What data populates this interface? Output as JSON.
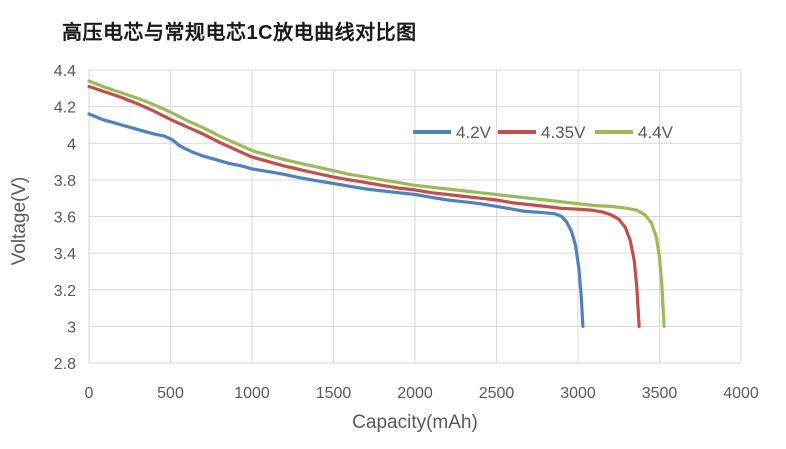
{
  "title": "高压电芯与常规电芯1C放电曲线对比图",
  "chart_data": {
    "type": "line",
    "title": "高压电芯与常规电芯1C放电曲线对比图",
    "xlabel": "Capacity(mAh)",
    "ylabel": "Voltage(V)",
    "xlim": [
      0,
      4000
    ],
    "ylim": [
      2.8,
      4.4
    ],
    "grid": true,
    "legend_position": "top-right-inside",
    "grid_color": "#d9d9d9",
    "tick_color": "#595959",
    "background": "#ffffff",
    "x_ticks": [
      0,
      500,
      1000,
      1500,
      2000,
      2500,
      3000,
      3500,
      4000
    ],
    "x_tick_labels": [
      "0",
      "500",
      "1000",
      "1500",
      "2000",
      "2500",
      "3000",
      "3500",
      "4000"
    ],
    "y_ticks": [
      4.4,
      4.2,
      4.0,
      3.8,
      3.6,
      3.4,
      3.2,
      3.0,
      2.8
    ],
    "y_tick_labels": [
      "4.4",
      "4.2",
      "4",
      "3.8",
      "3.6",
      "3.4",
      "3.2",
      "3",
      "2.8"
    ],
    "series": [
      {
        "name": "4.2V",
        "color": "#4F81BD",
        "points": [
          [
            0,
            4.16
          ],
          [
            80,
            4.13
          ],
          [
            160,
            4.11
          ],
          [
            240,
            4.09
          ],
          [
            320,
            4.07
          ],
          [
            400,
            4.05
          ],
          [
            460,
            4.04
          ],
          [
            510,
            4.02
          ],
          [
            550,
            3.99
          ],
          [
            590,
            3.97
          ],
          [
            640,
            3.95
          ],
          [
            700,
            3.93
          ],
          [
            780,
            3.91
          ],
          [
            860,
            3.89
          ],
          [
            940,
            3.875
          ],
          [
            1000,
            3.86
          ],
          [
            1100,
            3.845
          ],
          [
            1200,
            3.83
          ],
          [
            1300,
            3.81
          ],
          [
            1400,
            3.795
          ],
          [
            1500,
            3.78
          ],
          [
            1600,
            3.765
          ],
          [
            1700,
            3.75
          ],
          [
            1800,
            3.74
          ],
          [
            1900,
            3.73
          ],
          [
            2000,
            3.72
          ],
          [
            2100,
            3.705
          ],
          [
            2200,
            3.69
          ],
          [
            2300,
            3.68
          ],
          [
            2400,
            3.67
          ],
          [
            2500,
            3.655
          ],
          [
            2600,
            3.64
          ],
          [
            2660,
            3.63
          ],
          [
            2720,
            3.625
          ],
          [
            2800,
            3.62
          ],
          [
            2860,
            3.615
          ],
          [
            2900,
            3.6
          ],
          [
            2930,
            3.57
          ],
          [
            2960,
            3.52
          ],
          [
            2985,
            3.44
          ],
          [
            3005,
            3.32
          ],
          [
            3020,
            3.16
          ],
          [
            3030,
            3.0
          ]
        ]
      },
      {
        "name": "4.35V",
        "color": "#C0504D",
        "points": [
          [
            0,
            4.31
          ],
          [
            100,
            4.28
          ],
          [
            200,
            4.25
          ],
          [
            300,
            4.215
          ],
          [
            400,
            4.175
          ],
          [
            500,
            4.13
          ],
          [
            600,
            4.09
          ],
          [
            700,
            4.05
          ],
          [
            800,
            4.005
          ],
          [
            900,
            3.965
          ],
          [
            1000,
            3.925
          ],
          [
            1100,
            3.9
          ],
          [
            1200,
            3.875
          ],
          [
            1300,
            3.855
          ],
          [
            1400,
            3.835
          ],
          [
            1500,
            3.815
          ],
          [
            1600,
            3.8
          ],
          [
            1700,
            3.785
          ],
          [
            1800,
            3.77
          ],
          [
            1900,
            3.755
          ],
          [
            2000,
            3.745
          ],
          [
            2100,
            3.73
          ],
          [
            2200,
            3.72
          ],
          [
            2300,
            3.71
          ],
          [
            2400,
            3.7
          ],
          [
            2500,
            3.69
          ],
          [
            2600,
            3.675
          ],
          [
            2700,
            3.665
          ],
          [
            2800,
            3.655
          ],
          [
            2900,
            3.645
          ],
          [
            3000,
            3.64
          ],
          [
            3080,
            3.635
          ],
          [
            3150,
            3.625
          ],
          [
            3200,
            3.61
          ],
          [
            3250,
            3.585
          ],
          [
            3290,
            3.54
          ],
          [
            3320,
            3.47
          ],
          [
            3345,
            3.36
          ],
          [
            3360,
            3.22
          ],
          [
            3372,
            3.05
          ],
          [
            3375,
            3.0
          ]
        ]
      },
      {
        "name": "4.4V",
        "color": "#9BBB59",
        "points": [
          [
            0,
            4.34
          ],
          [
            100,
            4.305
          ],
          [
            200,
            4.275
          ],
          [
            300,
            4.245
          ],
          [
            400,
            4.21
          ],
          [
            500,
            4.17
          ],
          [
            600,
            4.125
          ],
          [
            700,
            4.085
          ],
          [
            800,
            4.04
          ],
          [
            900,
            4.0
          ],
          [
            1000,
            3.96
          ],
          [
            1100,
            3.935
          ],
          [
            1200,
            3.91
          ],
          [
            1300,
            3.89
          ],
          [
            1400,
            3.87
          ],
          [
            1500,
            3.85
          ],
          [
            1600,
            3.83
          ],
          [
            1700,
            3.815
          ],
          [
            1800,
            3.8
          ],
          [
            1900,
            3.785
          ],
          [
            2000,
            3.77
          ],
          [
            2100,
            3.76
          ],
          [
            2200,
            3.75
          ],
          [
            2300,
            3.74
          ],
          [
            2400,
            3.73
          ],
          [
            2500,
            3.72
          ],
          [
            2600,
            3.71
          ],
          [
            2700,
            3.7
          ],
          [
            2800,
            3.69
          ],
          [
            2900,
            3.68
          ],
          [
            3000,
            3.67
          ],
          [
            3100,
            3.66
          ],
          [
            3200,
            3.655
          ],
          [
            3300,
            3.645
          ],
          [
            3360,
            3.635
          ],
          [
            3410,
            3.61
          ],
          [
            3450,
            3.565
          ],
          [
            3480,
            3.49
          ],
          [
            3500,
            3.38
          ],
          [
            3515,
            3.22
          ],
          [
            3525,
            3.05
          ],
          [
            3528,
            3.0
          ]
        ]
      }
    ]
  }
}
